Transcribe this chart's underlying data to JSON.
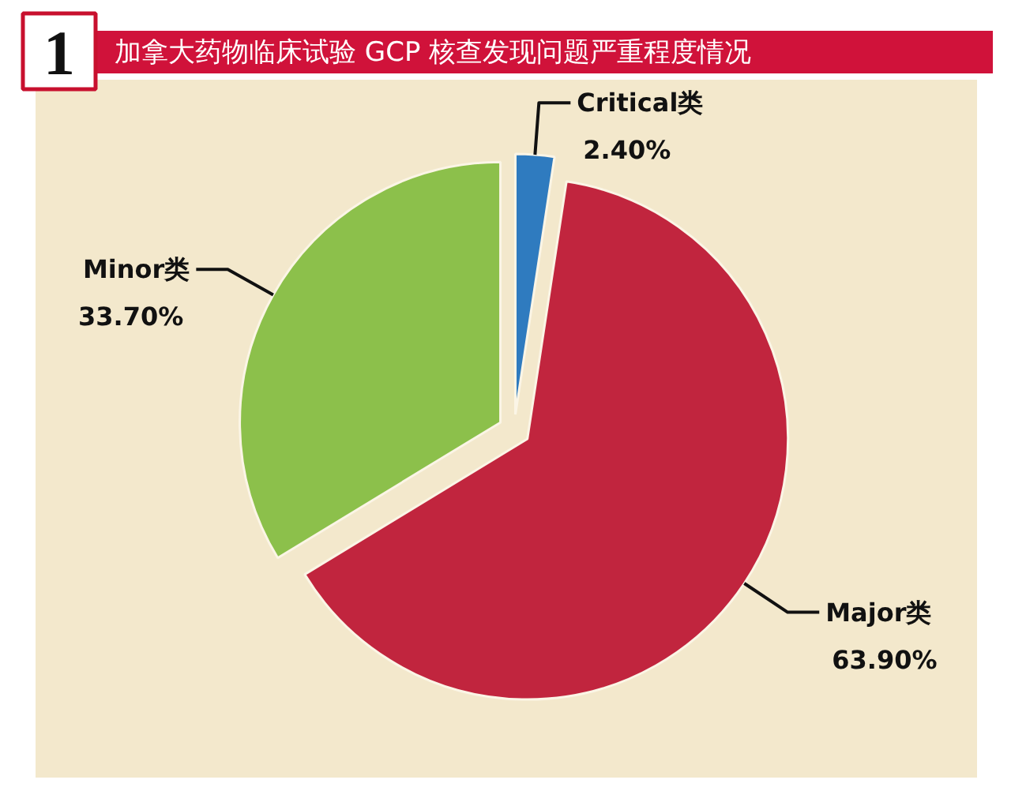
{
  "chart_data": {
    "type": "pie",
    "title": "加拿大药物临床试验 GCP 核查发现问题严重程度情况",
    "categories": [
      "Critical类",
      "Major类",
      "Minor类"
    ],
    "values": [
      2.4,
      63.9,
      33.7
    ],
    "colors": [
      "#2f7bbf",
      "#c1253e",
      "#8cc04b"
    ],
    "value_labels": [
      "2.40%",
      "63.90%",
      "33.70%"
    ],
    "annotations": [
      "1"
    ]
  }
}
